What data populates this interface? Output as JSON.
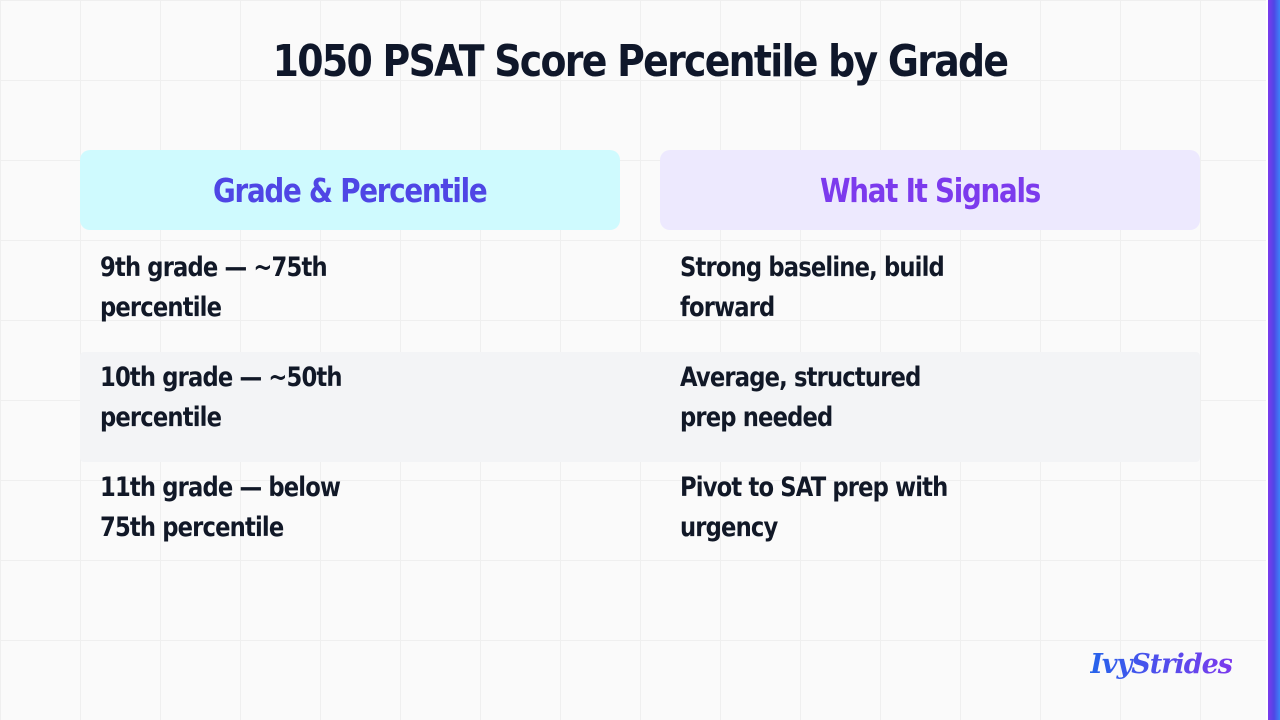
{
  "title": "1050 PSAT Score Percentile by Grade",
  "columns": {
    "left": "Grade & Percentile",
    "right": "What It Signals"
  },
  "rows": [
    {
      "grade": "9th grade — ~75th percentile",
      "signal": "Strong baseline, build forward"
    },
    {
      "grade": "10th grade — ~50th percentile",
      "signal": "Average, structured prep needed"
    },
    {
      "grade": "11th grade — below 75th percentile",
      "signal": "Pivot to SAT prep with urgency"
    }
  ],
  "logo": "IvyStrides",
  "colors": {
    "left_header_bg": "#cffafe",
    "left_header_text": "#4f46e5",
    "right_header_bg": "#ede9fe",
    "right_header_text": "#7c3aed",
    "accent": "#4f46e5"
  }
}
